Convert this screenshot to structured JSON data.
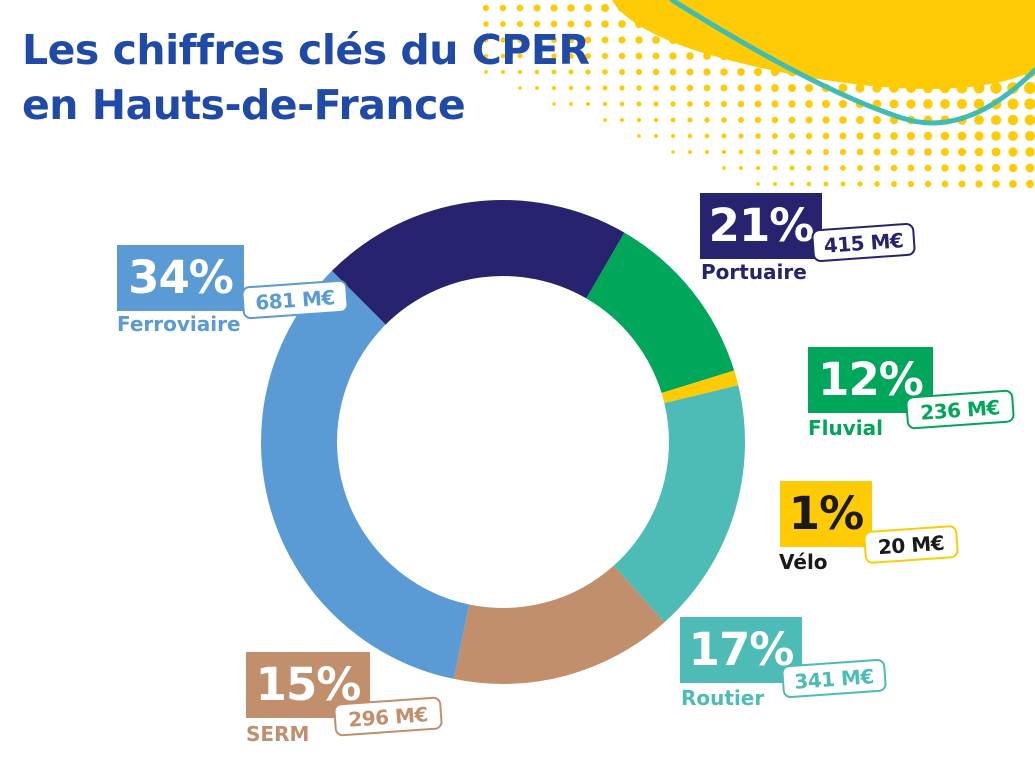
{
  "header": {
    "title_line1": "Les chiffres clés du CPER",
    "title_line2": "en Hauts-de-France"
  },
  "colors": {
    "title": "#1f4aa8",
    "accent_yellow": "#ffcb05",
    "accent_teal": "#3fbcb4"
  },
  "chart_data": {
    "type": "pie",
    "donut": true,
    "unit": "M€",
    "slices": [
      {
        "label": "Portuaire",
        "percent": "21%",
        "value": 415,
        "amount_label": "415 M€",
        "color": "#27236f"
      },
      {
        "label": "Fluvial",
        "percent": "12%",
        "value": 236,
        "amount_label": "236 M€",
        "color": "#00a65a"
      },
      {
        "label": "Vélo",
        "percent": "1%",
        "value": 20,
        "amount_label": "20 M€",
        "color": "#ffcb05"
      },
      {
        "label": "Routier",
        "percent": "17%",
        "value": 341,
        "amount_label": "341 M€",
        "color": "#4dbbb6"
      },
      {
        "label": "SERM",
        "percent": "15%",
        "value": 296,
        "amount_label": "296 M€",
        "color": "#c18f6c"
      },
      {
        "label": "Ferroviaire",
        "percent": "34%",
        "value": 681,
        "amount_label": "681 M€",
        "color": "#5b9bd5"
      }
    ]
  }
}
